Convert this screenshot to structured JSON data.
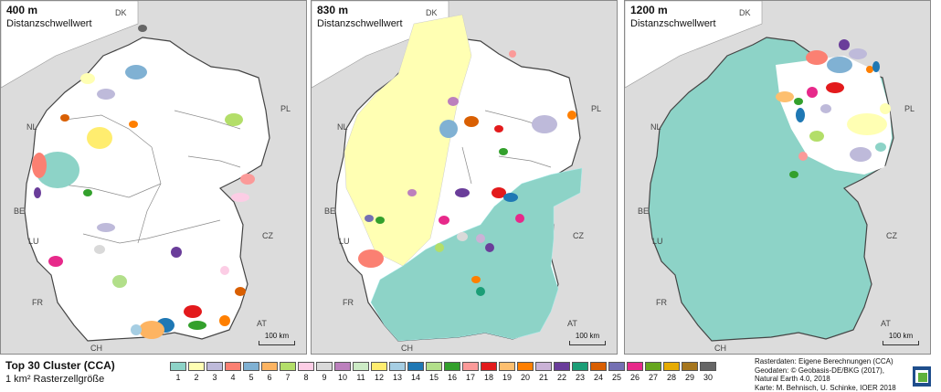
{
  "panels": [
    {
      "title": "400 m",
      "subtitle": "Distanzschwellwert",
      "scale_label": "100 km",
      "country_labels": [
        "DK",
        "NL",
        "BE",
        "LU",
        "FR",
        "CH",
        "AT",
        "CZ",
        "PL"
      ]
    },
    {
      "title": "830 m",
      "subtitle": "Distanzschwellwert",
      "scale_label": "100 km",
      "country_labels": [
        "DK",
        "NL",
        "BE",
        "LU",
        "FR",
        "CH",
        "AT",
        "CZ",
        "PL"
      ]
    },
    {
      "title": "1200 m",
      "subtitle": "Distanzschwellwert",
      "scale_label": "100 km",
      "country_labels": [
        "DK",
        "NL",
        "BE",
        "LU",
        "FR",
        "CH",
        "AT",
        "CZ",
        "PL"
      ]
    }
  ],
  "legend": {
    "title": "Top 30 Cluster (CCA)",
    "subtitle": "1 km² Rasterzellgröße",
    "classes": [
      {
        "label": "1",
        "color": "#8dd3c7"
      },
      {
        "label": "2",
        "color": "#ffffb3"
      },
      {
        "label": "3",
        "color": "#bebada"
      },
      {
        "label": "4",
        "color": "#fb8072"
      },
      {
        "label": "5",
        "color": "#80b1d3"
      },
      {
        "label": "6",
        "color": "#fdb462"
      },
      {
        "label": "7",
        "color": "#b3de69"
      },
      {
        "label": "8",
        "color": "#fccde5"
      },
      {
        "label": "9",
        "color": "#d9d9d9"
      },
      {
        "label": "10",
        "color": "#bc80bd"
      },
      {
        "label": "11",
        "color": "#ccebc5"
      },
      {
        "label": "12",
        "color": "#ffed6f"
      },
      {
        "label": "13",
        "color": "#a6cee3"
      },
      {
        "label": "14",
        "color": "#1f78b4"
      },
      {
        "label": "15",
        "color": "#b2df8a"
      },
      {
        "label": "16",
        "color": "#33a02c"
      },
      {
        "label": "17",
        "color": "#fb9a99"
      },
      {
        "label": "18",
        "color": "#e31a1c"
      },
      {
        "label": "19",
        "color": "#fdbf6f"
      },
      {
        "label": "20",
        "color": "#ff7f00"
      },
      {
        "label": "21",
        "color": "#cab2d6"
      },
      {
        "label": "22",
        "color": "#6a3d9a"
      },
      {
        "label": "23",
        "color": "#1b9e77"
      },
      {
        "label": "24",
        "color": "#d95f02"
      },
      {
        "label": "25",
        "color": "#7570b3"
      },
      {
        "label": "26",
        "color": "#e7298a"
      },
      {
        "label": "27",
        "color": "#66a61e"
      },
      {
        "label": "28",
        "color": "#e6ab02"
      },
      {
        "label": "29",
        "color": "#a6761d"
      },
      {
        "label": "30",
        "color": "#666666"
      }
    ]
  },
  "credits": [
    "Rasterdaten: Eigene Berechnungen (CCA)",
    "Geodaten: © Geobasis-DE/BKG (2017),",
    "Natural Earth 4.0, 2018",
    "Karte: M. Behnisch, U. Schinke, IOER 2018"
  ]
}
